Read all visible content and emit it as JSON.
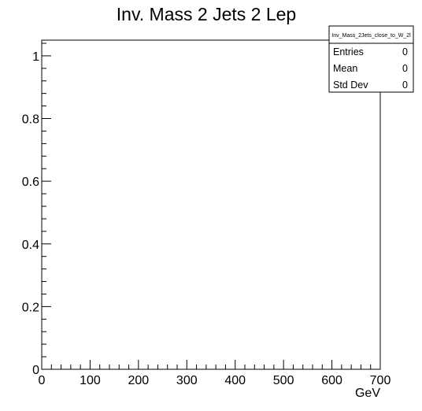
{
  "chart_data": {
    "type": "bar",
    "title": "Inv. Mass 2 Jets 2 Lep",
    "xlabel": "GeV",
    "ylabel": "",
    "xlim": [
      0,
      700
    ],
    "ylim": [
      0,
      1.05
    ],
    "x_ticks": [
      0,
      100,
      200,
      300,
      400,
      500,
      600,
      700
    ],
    "x_tick_labels": [
      "0",
      "100",
      "200",
      "300",
      "400",
      "500",
      "600",
      "700"
    ],
    "y_ticks": [
      0,
      0.2,
      0.4,
      0.6,
      0.8,
      1
    ],
    "y_tick_labels": [
      "0",
      "0.2",
      "0.4",
      "0.6",
      "0.8",
      "1"
    ],
    "series": [],
    "grid": false,
    "stats_box": {
      "name": "Inv_Mass_2Jets_close_to_W_2l",
      "rows": [
        {
          "label": "Entries",
          "value": "0"
        },
        {
          "label": "Mean",
          "value": "0"
        },
        {
          "label": "Std Dev",
          "value": "0"
        }
      ]
    }
  }
}
